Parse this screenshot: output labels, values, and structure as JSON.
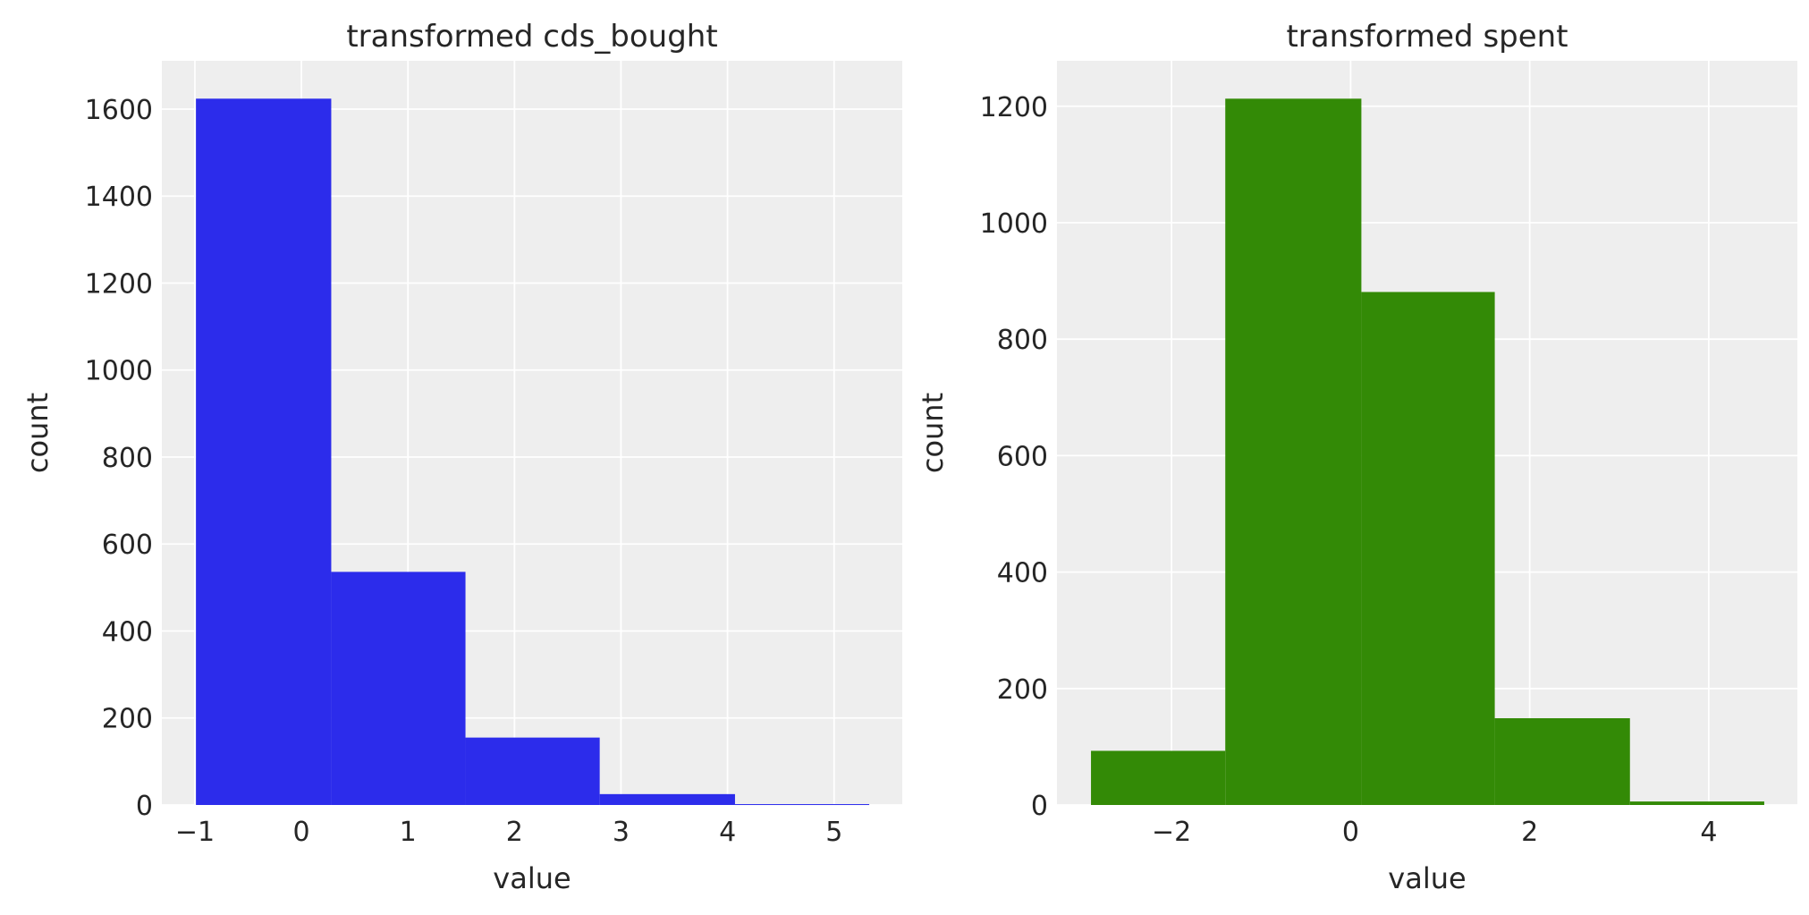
{
  "chart_data": [
    {
      "type": "bar",
      "title": "transformed cds_bought",
      "xlabel": "value",
      "ylabel": "count",
      "bin_edges": [
        -0.99,
        0.28,
        1.54,
        2.8,
        4.07,
        5.33
      ],
      "values": [
        1624,
        536,
        155,
        25,
        2
      ],
      "xlim": [
        -1.31,
        5.64
      ],
      "ylim": [
        0,
        1711
      ],
      "xticks": [
        -1,
        0,
        1,
        2,
        3,
        4,
        5
      ],
      "xtick_labels": [
        "−1",
        "0",
        "1",
        "2",
        "3",
        "4",
        "5"
      ],
      "yticks": [
        0,
        200,
        400,
        600,
        800,
        1000,
        1200,
        1400,
        1600
      ],
      "ytick_labels": [
        "0",
        "200",
        "400",
        "600",
        "800",
        "1000",
        "1200",
        "1400",
        "1600"
      ],
      "color": "#2c2ceb",
      "grid": true,
      "background": "#eeeeee"
    },
    {
      "type": "bar",
      "title": "transformed spent",
      "xlabel": "value",
      "ylabel": "count",
      "bin_edges": [
        -2.9,
        -1.4,
        0.12,
        1.61,
        3.12,
        4.62
      ],
      "values": [
        93,
        1213,
        881,
        149,
        6
      ],
      "xlim": [
        -3.28,
        4.99
      ],
      "ylim": [
        0,
        1278
      ],
      "xticks": [
        -2,
        0,
        2,
        4
      ],
      "xtick_labels": [
        "−2",
        "0",
        "2",
        "4"
      ],
      "yticks": [
        0,
        200,
        400,
        600,
        800,
        1000,
        1200
      ],
      "ytick_labels": [
        "0",
        "200",
        "400",
        "600",
        "800",
        "1000",
        "1200"
      ],
      "color": "#338a06",
      "grid": true,
      "background": "#eeeeee"
    }
  ]
}
